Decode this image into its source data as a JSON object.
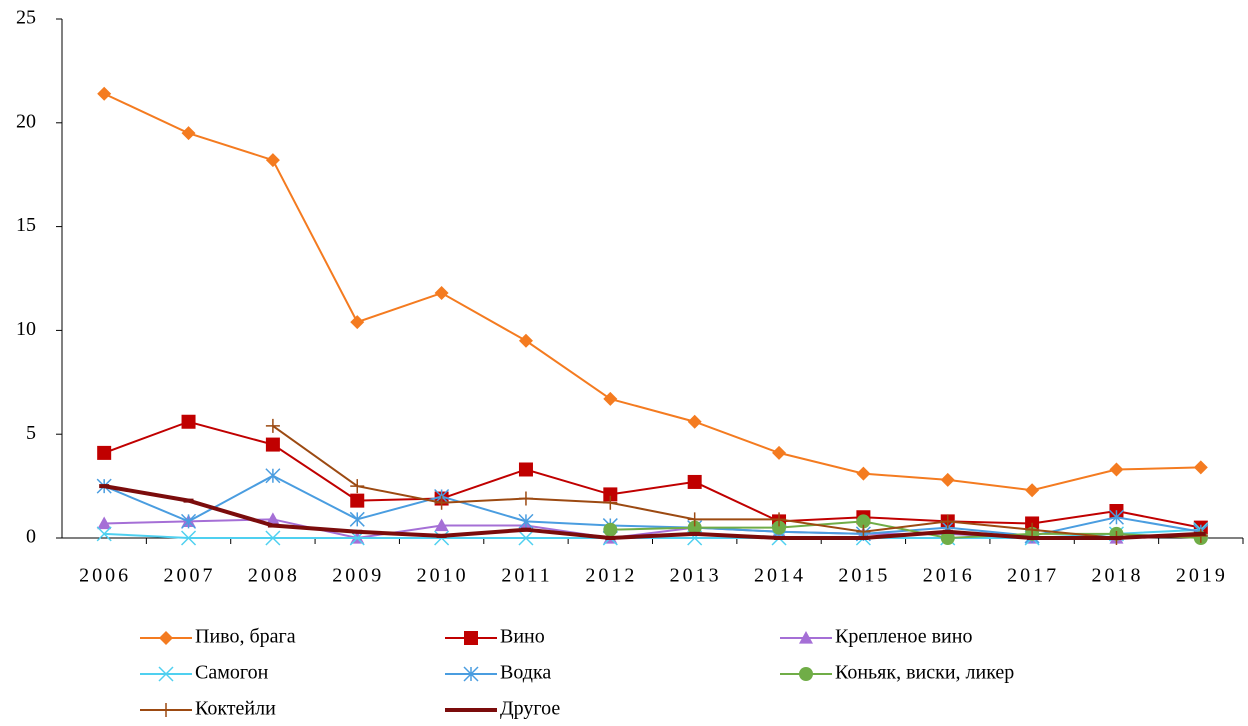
{
  "chart_data": {
    "type": "line",
    "categories": [
      "2006",
      "2007",
      "2008",
      "2009",
      "2010",
      "2011",
      "2012",
      "2013",
      "2014",
      "2015",
      "2016",
      "2017",
      "2018",
      "2019"
    ],
    "ylim": [
      0,
      25
    ],
    "yticks": [
      0,
      5,
      10,
      15,
      20,
      25
    ],
    "grid": false,
    "series": [
      {
        "name": "Пиво, брага",
        "color": "#f47b20",
        "marker": "diamond",
        "values": [
          21.4,
          19.5,
          18.2,
          10.4,
          11.8,
          9.5,
          6.7,
          5.6,
          4.1,
          3.1,
          2.8,
          2.3,
          3.3,
          3.4
        ]
      },
      {
        "name": "Вино",
        "color": "#c00000",
        "marker": "square",
        "values": [
          4.1,
          5.6,
          4.5,
          1.8,
          1.9,
          3.3,
          2.1,
          2.7,
          0.8,
          1.0,
          0.8,
          0.7,
          1.3,
          0.5
        ]
      },
      {
        "name": "Крепленое вино",
        "color": "#a56fd6",
        "marker": "triangle",
        "values": [
          0.7,
          0.8,
          0.9,
          0.0,
          0.6,
          0.6,
          0.0,
          0.5,
          0.3,
          0.2,
          0.2,
          0.0,
          0.0,
          0.2
        ]
      },
      {
        "name": "Самогон",
        "color": "#4fd0f0",
        "marker": "x",
        "values": [
          0.2,
          0.0,
          0.0,
          0.0,
          0.0,
          0.0,
          0.0,
          0.0,
          0.0,
          0.0,
          0.0,
          0.0,
          0.2,
          0.4
        ]
      },
      {
        "name": "Водка",
        "color": "#4a9de0",
        "marker": "asterisk",
        "values": [
          2.5,
          0.8,
          3.0,
          0.9,
          2.0,
          0.8,
          0.6,
          0.5,
          0.3,
          0.2,
          0.5,
          0.1,
          1.0,
          0.3
        ]
      },
      {
        "name": "Коньяк, виски, ликер",
        "color": "#70ad47",
        "marker": "circle",
        "values": [
          null,
          null,
          null,
          null,
          null,
          null,
          0.4,
          0.5,
          0.5,
          0.8,
          0.0,
          0.2,
          0.2,
          0.0
        ]
      },
      {
        "name": "Коктейли",
        "color": "#9c4a12",
        "marker": "plus",
        "values": [
          null,
          null,
          5.4,
          2.5,
          1.7,
          1.9,
          1.7,
          0.9,
          0.9,
          0.3,
          0.8,
          0.4,
          0.0,
          0.1
        ]
      },
      {
        "name": "Другое",
        "color": "#7b0c0c",
        "marker": "dash",
        "values": [
          2.5,
          1.8,
          0.6,
          0.3,
          0.1,
          0.4,
          0.0,
          0.2,
          0.0,
          0.0,
          0.3,
          0.0,
          0.0,
          0.2
        ]
      }
    ]
  }
}
